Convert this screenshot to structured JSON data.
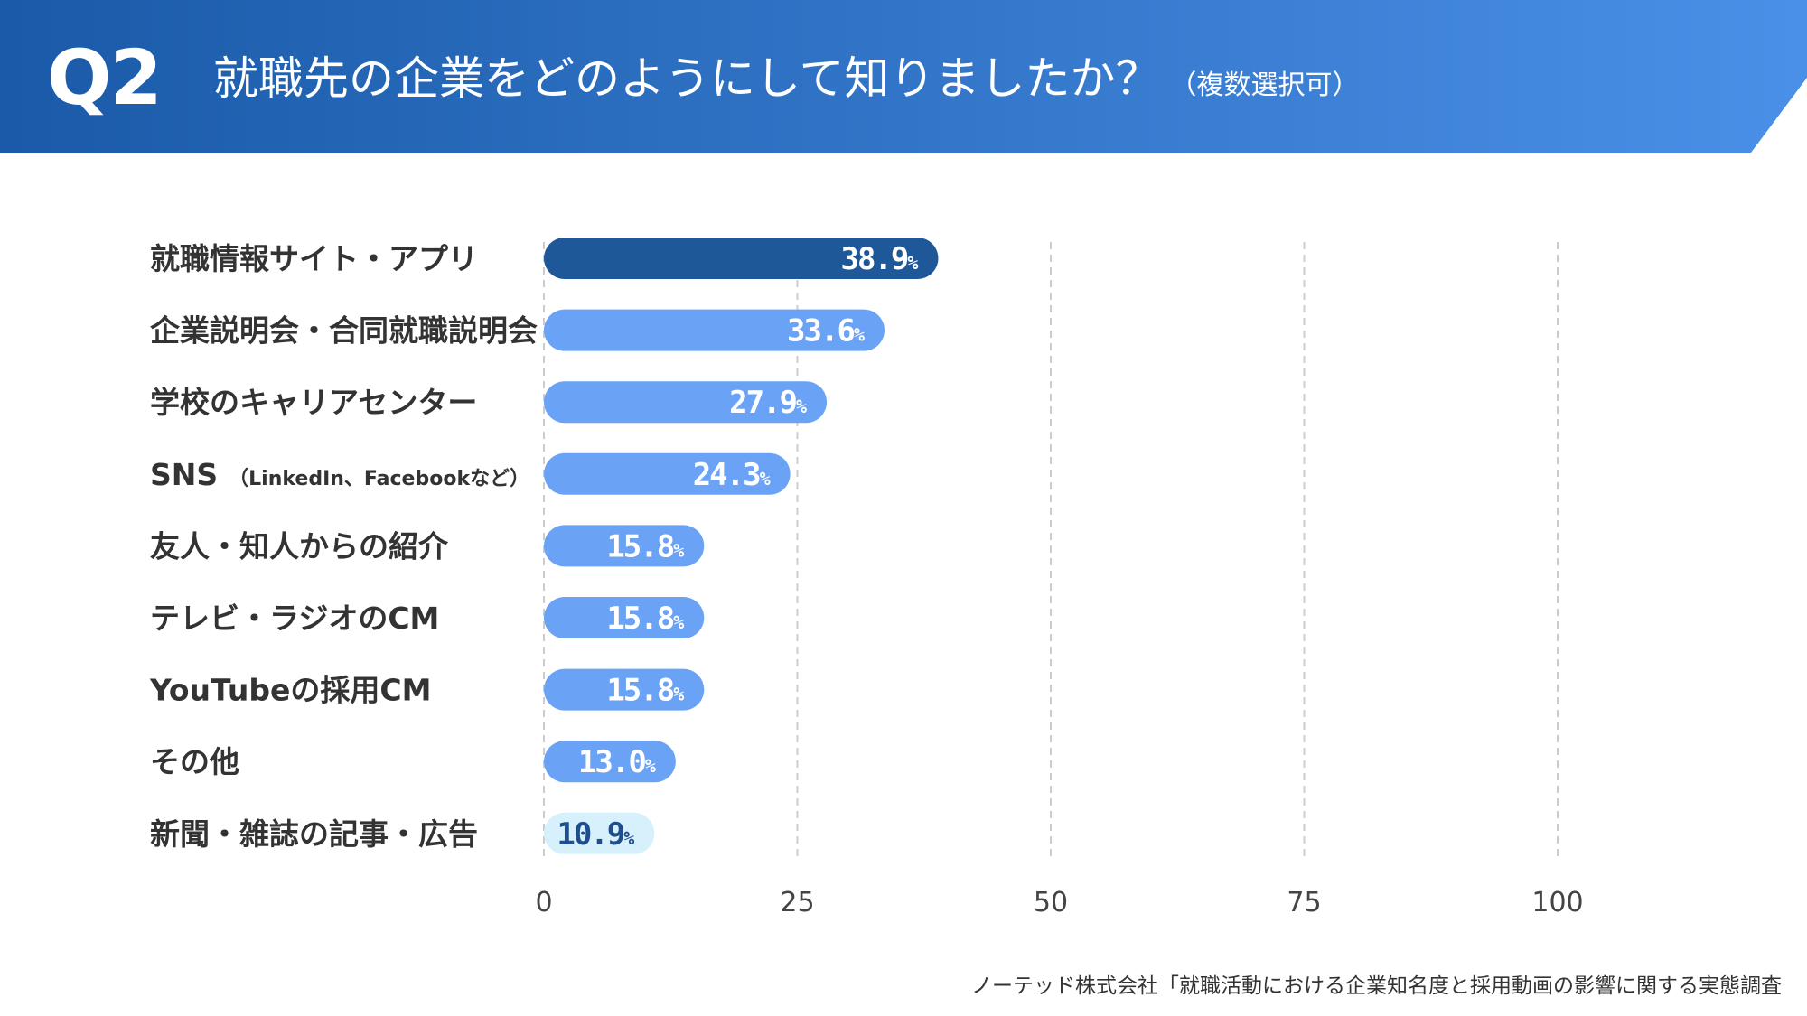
{
  "header": {
    "q_label": "Q2",
    "title": "就職先の企業をどのようにして知りましたか？",
    "note": "（複数選択可）"
  },
  "source": "ノーテッド株式会社「就職活動における企業知名度と採用動画の影響に関する実態調査",
  "colors": {
    "header_start": "#1a5aa8",
    "header_end": "#4a90e8",
    "bar_top": "#1f5899",
    "bar_default": "#6aa3f5",
    "bar_last": "#d6f1fb",
    "text_light": "#ffffff",
    "text_last": "#1f4e8c",
    "grid": "#cccccc"
  },
  "chart_data": {
    "type": "bar",
    "orientation": "horizontal",
    "title": "就職先の企業をどのようにして知りましたか？（複数選択可）",
    "categories": [
      {
        "main": "就職情報サイト・アプリ",
        "note": ""
      },
      {
        "main": "企業説明会・合同就職説明会",
        "note": ""
      },
      {
        "main": "学校のキャリアセンター",
        "note": ""
      },
      {
        "main": "SNS",
        "note": "（LinkedIn、Facebookなど）"
      },
      {
        "main": "友人・知人からの紹介",
        "note": ""
      },
      {
        "main": "テレビ・ラジオのCM",
        "note": ""
      },
      {
        "main": "YouTubeの採用CM",
        "note": ""
      },
      {
        "main": "その他",
        "note": ""
      },
      {
        "main": "新聞・雑誌の記事・広告",
        "note": ""
      }
    ],
    "values": [
      38.9,
      33.6,
      27.9,
      24.3,
      15.8,
      15.8,
      15.8,
      13.0,
      10.9
    ],
    "value_unit": "%",
    "xlim": [
      0,
      100
    ],
    "xticks": [
      0,
      25,
      50,
      75,
      100
    ],
    "grid": true
  }
}
